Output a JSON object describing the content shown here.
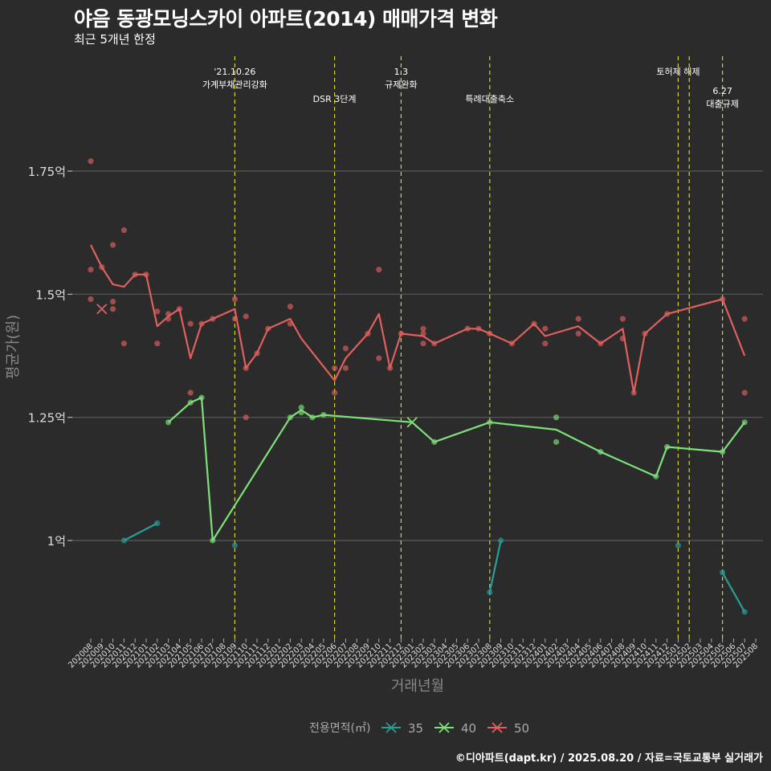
{
  "title": "야음 동광모닝스카이 아파트(2014) 매매가격 변화",
  "subtitle": "최근 5개년 한정",
  "caption": "©디아파트(dapt.kr) / 2025.08.20 / 자료=국토교통부 실거래가",
  "colors": {
    "background": "#2b2b2b",
    "grid": "#5a5a5a",
    "event_line": "#d4d42a",
    "s35": "#2a9d98",
    "s40": "#7ee07a",
    "s50": "#e0605e"
  },
  "chart_data": {
    "type": "line",
    "xlabel": "거래년월",
    "ylabel": "평균가(원)",
    "ylim": [
      0.84,
      1.95
    ],
    "yticks": [
      {
        "value": 1.0,
        "label": "1억"
      },
      {
        "value": 1.25,
        "label": "1.25억"
      },
      {
        "value": 1.5,
        "label": "1.5억"
      },
      {
        "value": 1.75,
        "label": "1.75억"
      }
    ],
    "x_categories": [
      "202008",
      "202009",
      "202010",
      "202011",
      "202012",
      "202101",
      "202102",
      "202103",
      "202104",
      "202105",
      "202106",
      "202107",
      "202108",
      "202109",
      "202110",
      "202111",
      "202112",
      "202201",
      "202202",
      "202203",
      "202204",
      "202205",
      "202206",
      "202207",
      "202208",
      "202209",
      "202210",
      "202211",
      "202212",
      "202301",
      "202302",
      "202303",
      "202304",
      "202305",
      "202306",
      "202307",
      "202308",
      "202309",
      "202310",
      "202311",
      "202312",
      "202401",
      "202402",
      "202403",
      "202404",
      "202405",
      "202406",
      "202407",
      "202408",
      "202409",
      "202410",
      "202411",
      "202412",
      "202501",
      "202502",
      "202503",
      "202504",
      "202505",
      "202506",
      "202507",
      "202508"
    ],
    "legend": {
      "title": "전용면적(㎡)",
      "position": "bottom",
      "items": [
        "35",
        "40",
        "50"
      ]
    },
    "events": [
      {
        "x": 13,
        "label_lines": [
          "'21.10.26",
          "가계부채관리강화"
        ],
        "level": "top"
      },
      {
        "x": 22,
        "label_lines": [
          "DSR 3단계"
        ],
        "level": "mid"
      },
      {
        "x": 28,
        "label_lines": [
          "1.3",
          "규제완화"
        ],
        "level": "top"
      },
      {
        "x": 36,
        "label_lines": [
          "특례대출축소"
        ],
        "level": "mid"
      },
      {
        "x": 53,
        "label_lines": [
          "토허제 해제"
        ],
        "level": "top"
      },
      {
        "x": 54,
        "label_lines": [],
        "level": "none"
      },
      {
        "x": 57,
        "label_lines": [
          "6.27",
          "대출규제"
        ],
        "level": "top2"
      }
    ],
    "series": [
      {
        "name": "35",
        "color_key": "s35",
        "line_segments": [
          [
            [
              3,
              1.0
            ],
            [
              6,
              1.035
            ]
          ],
          [
            [
              36,
              0.895
            ],
            [
              37,
              1.0
            ]
          ],
          [
            [
              57,
              0.935
            ],
            [
              59,
              0.855
            ]
          ]
        ],
        "points": [
          [
            3,
            1.0
          ],
          [
            6,
            1.035
          ],
          [
            13,
            0.99
          ],
          [
            36,
            0.895
          ],
          [
            37,
            1.0
          ],
          [
            53,
            0.99
          ],
          [
            57,
            0.935
          ],
          [
            59,
            0.855
          ]
        ],
        "cross_markers": []
      },
      {
        "name": "40",
        "color_key": "s40",
        "line_segments": [
          [
            [
              7,
              1.24
            ],
            [
              9,
              1.28
            ],
            [
              10,
              1.29
            ],
            [
              11,
              1.0
            ],
            [
              18,
              1.25
            ],
            [
              19,
              1.265
            ],
            [
              20,
              1.25
            ],
            [
              21,
              1.255
            ],
            [
              29,
              1.24
            ],
            [
              31,
              1.2
            ],
            [
              36,
              1.24
            ],
            [
              42,
              1.225
            ],
            [
              46,
              1.18
            ],
            [
              51,
              1.13
            ],
            [
              52,
              1.19
            ],
            [
              57,
              1.18
            ],
            [
              59,
              1.24
            ]
          ]
        ],
        "points": [
          [
            7,
            1.24
          ],
          [
            9,
            1.28
          ],
          [
            10,
            1.29
          ],
          [
            11,
            1.0
          ],
          [
            18,
            1.25
          ],
          [
            19,
            1.27
          ],
          [
            19,
            1.26
          ],
          [
            20,
            1.25
          ],
          [
            21,
            1.255
          ],
          [
            31,
            1.2
          ],
          [
            36,
            1.24
          ],
          [
            42,
            1.25
          ],
          [
            42,
            1.2
          ],
          [
            46,
            1.18
          ],
          [
            51,
            1.13
          ],
          [
            52,
            1.19
          ],
          [
            57,
            1.18
          ],
          [
            59,
            1.24
          ]
        ],
        "cross_markers": [
          [
            29,
            1.24
          ]
        ]
      },
      {
        "name": "50",
        "color_key": "s50",
        "line_segments": [
          [
            [
              0,
              1.6
            ],
            [
              1,
              1.555
            ],
            [
              2,
              1.52
            ],
            [
              3,
              1.515
            ],
            [
              4,
              1.54
            ],
            [
              5,
              1.54
            ],
            [
              6,
              1.435
            ],
            [
              7,
              1.455
            ],
            [
              8,
              1.47
            ],
            [
              9,
              1.37
            ],
            [
              10,
              1.44
            ],
            [
              11,
              1.45
            ],
            [
              13,
              1.47
            ],
            [
              14,
              1.35
            ],
            [
              15,
              1.38
            ],
            [
              16,
              1.43
            ],
            [
              18,
              1.45
            ],
            [
              19,
              1.41
            ],
            [
              22,
              1.325
            ],
            [
              23,
              1.37
            ],
            [
              25,
              1.42
            ],
            [
              26,
              1.46
            ],
            [
              27,
              1.35
            ],
            [
              28,
              1.42
            ],
            [
              30,
              1.415
            ],
            [
              31,
              1.4
            ],
            [
              34,
              1.43
            ],
            [
              35,
              1.43
            ],
            [
              36,
              1.42
            ],
            [
              38,
              1.4
            ],
            [
              40,
              1.44
            ],
            [
              41,
              1.415
            ],
            [
              44,
              1.435
            ],
            [
              46,
              1.4
            ],
            [
              48,
              1.43
            ],
            [
              49,
              1.3
            ],
            [
              50,
              1.42
            ],
            [
              52,
              1.46
            ],
            [
              57,
              1.49
            ],
            [
              59,
              1.375
            ]
          ]
        ],
        "points": [
          [
            0,
            1.77
          ],
          [
            0,
            1.55
          ],
          [
            0,
            1.49
          ],
          [
            1,
            1.555
          ],
          [
            2,
            1.6
          ],
          [
            2,
            1.485
          ],
          [
            2,
            1.47
          ],
          [
            3,
            1.63
          ],
          [
            3,
            1.4
          ],
          [
            4,
            1.54
          ],
          [
            5,
            1.54
          ],
          [
            6,
            1.465
          ],
          [
            6,
            1.4
          ],
          [
            7,
            1.46
          ],
          [
            7,
            1.45
          ],
          [
            8,
            1.47
          ],
          [
            9,
            1.44
          ],
          [
            9,
            1.3
          ],
          [
            10,
            1.44
          ],
          [
            11,
            1.45
          ],
          [
            13,
            1.49
          ],
          [
            13,
            1.45
          ],
          [
            14,
            1.455
          ],
          [
            14,
            1.35
          ],
          [
            14,
            1.25
          ],
          [
            15,
            1.38
          ],
          [
            16,
            1.43
          ],
          [
            18,
            1.475
          ],
          [
            18,
            1.44
          ],
          [
            22,
            1.35
          ],
          [
            22,
            1.3
          ],
          [
            23,
            1.39
          ],
          [
            23,
            1.35
          ],
          [
            25,
            1.42
          ],
          [
            26,
            1.55
          ],
          [
            26,
            1.37
          ],
          [
            27,
            1.35
          ],
          [
            28,
            1.42
          ],
          [
            30,
            1.43
          ],
          [
            30,
            1.42
          ],
          [
            30,
            1.4
          ],
          [
            31,
            1.4
          ],
          [
            34,
            1.43
          ],
          [
            35,
            1.43
          ],
          [
            36,
            1.42
          ],
          [
            38,
            1.4
          ],
          [
            40,
            1.44
          ],
          [
            41,
            1.43
          ],
          [
            41,
            1.4
          ],
          [
            44,
            1.45
          ],
          [
            44,
            1.42
          ],
          [
            46,
            1.4
          ],
          [
            48,
            1.45
          ],
          [
            48,
            1.41
          ],
          [
            49,
            1.3
          ],
          [
            50,
            1.42
          ],
          [
            52,
            1.46
          ],
          [
            57,
            1.49
          ],
          [
            59,
            1.45
          ],
          [
            59,
            1.3
          ]
        ],
        "cross_markers": [
          [
            1,
            1.47
          ]
        ]
      }
    ]
  }
}
